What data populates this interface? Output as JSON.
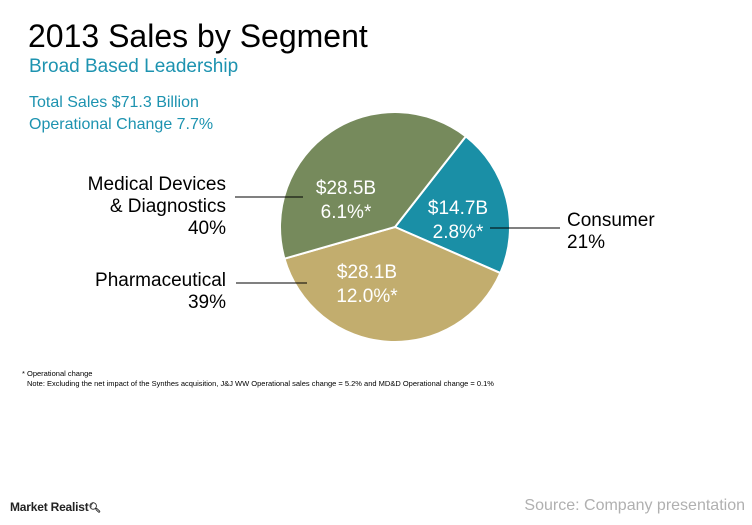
{
  "title": "2013 Sales by Segment",
  "subtitle": "Broad Based Leadership",
  "stats": {
    "total_sales": "Total Sales $71.3 Billion",
    "operational_change": "Operational Change 7.7%"
  },
  "notes": {
    "footnote": "* Operational change",
    "note": "Note: Excluding the net impact of the Synthes acquisition, J&J WW Operational sales change = 5.2% and MD&D Operational change = 0.1%"
  },
  "brand": "Market Realist",
  "source": "Source: Company presentation",
  "colors": {
    "medical_devices": "#768a5c",
    "consumer": "#1a8fa6",
    "pharmaceutical": "#c2ad6e",
    "accent": "#1d93b0"
  },
  "chart_data": {
    "type": "pie",
    "title": "2013 Sales by Segment",
    "subtitle": "Broad Based Leadership",
    "unit": "$B",
    "slices": [
      {
        "name_lines": [
          "Medical Devices",
          "& Diagnostics"
        ],
        "share_label": "40%",
        "share": 40,
        "value": 28.5,
        "value_label": "$28.5B",
        "change_label": "6.1%*"
      },
      {
        "name_lines": [
          "Consumer"
        ],
        "share_label": "21%",
        "share": 21,
        "value": 14.7,
        "value_label": "$14.7B",
        "change_label": "2.8%*"
      },
      {
        "name_lines": [
          "Pharmaceutical"
        ],
        "share_label": "39%",
        "share": 39,
        "value": 28.1,
        "value_label": "$28.1B",
        "change_label": "12.0%*"
      }
    ]
  }
}
